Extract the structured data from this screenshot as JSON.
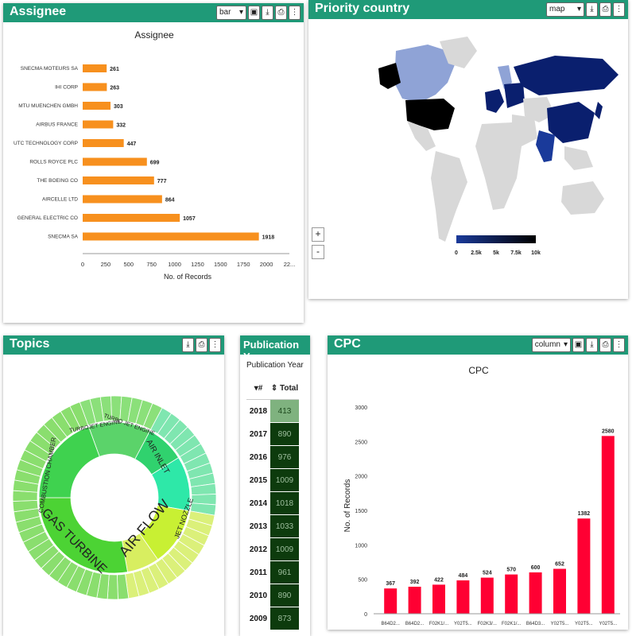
{
  "assignee": {
    "header_title": "Assignee",
    "select_value": "bar",
    "icons": [
      "save-icon",
      "download-icon",
      "print-icon",
      "more-icon"
    ],
    "chart_data": {
      "type": "bar",
      "orientation": "horizontal",
      "title": "Assignee",
      "xlabel": "No. of Records",
      "ylabel": "",
      "xlim": [
        0,
        2250
      ],
      "ticks": [
        "0",
        "250",
        "500",
        "750",
        "1000",
        "1250",
        "1500",
        "1750",
        "2000",
        "22..."
      ],
      "categories": [
        "SNECMA MOTEURS SA",
        "IHI CORP",
        "MTU MUENCHEN GMBH",
        "AIRBUS FRANCE",
        "UTC TECHNOLOGY CORP",
        "ROLLS ROYCE PLC",
        "THE BOEING CO",
        "AIRCELLE LTD",
        "GENERAL ELECTRIC CO",
        "SNECMA SA"
      ],
      "values": [
        261,
        263,
        303,
        332,
        447,
        699,
        777,
        864,
        1057,
        1918
      ],
      "color": "#f7901e"
    }
  },
  "priority": {
    "header_title": "Priority country",
    "select_value": "map",
    "icons": [
      "download-icon",
      "print-icon",
      "more-icon"
    ],
    "zoom_in": "+",
    "zoom_out": "-",
    "legend_ticks": [
      "0",
      "2.5k",
      "5k",
      "7.5k",
      "10k"
    ],
    "colors": {
      "land": "#d8d8d8",
      "high": "#000000",
      "mid": "#0a1f6e",
      "low": "#8fa3d6",
      "ocean": "#ffffff"
    }
  },
  "topics": {
    "header_title": "Topics",
    "icons": [
      "download-icon",
      "print-icon",
      "more-icon"
    ],
    "labels": [
      "TURBOJET ENGINE",
      "TURBO JET ENGINE",
      "AIR INLET",
      "COMBUSTION CHAMBER",
      "GAS TURBINE",
      "AIR FLOW",
      "JET NOZZLE"
    ]
  },
  "publication": {
    "header_title": "Publication Year",
    "subtitle": "Publication Year",
    "col_year": "# ",
    "col_total": "Total",
    "rows": [
      {
        "year": "2018",
        "total": "413"
      },
      {
        "year": "2017",
        "total": "890"
      },
      {
        "year": "2016",
        "total": "976"
      },
      {
        "year": "2015",
        "total": "1009"
      },
      {
        "year": "2014",
        "total": "1018"
      },
      {
        "year": "2013",
        "total": "1033"
      },
      {
        "year": "2012",
        "total": "1009"
      },
      {
        "year": "2011",
        "total": "961"
      },
      {
        "year": "2010",
        "total": "890"
      },
      {
        "year": "2009",
        "total": "873"
      }
    ],
    "first_row_color": "#7fb27f",
    "dark_color": "#0d3b0d"
  },
  "cpc": {
    "header_title": "CPC",
    "select_value": "column",
    "icons": [
      "save-icon",
      "download-icon",
      "print-icon",
      "more-icon"
    ],
    "chart_data": {
      "type": "bar",
      "title": "CPC",
      "xlabel": "",
      "ylabel": "No. of Records",
      "ylim": [
        0,
        3000
      ],
      "yticks": [
        "0",
        "500",
        "1000",
        "1500",
        "2000",
        "2500",
        "3000"
      ],
      "categories": [
        "B64D2...",
        "B64D2...",
        "F02K1/...",
        "Y02T5...",
        "F02K3/...",
        "F02K1/...",
        "B64D3...",
        "Y02T5...",
        "Y02T5...",
        "Y02T5..."
      ],
      "values": [
        367,
        392,
        422,
        484,
        524,
        570,
        600,
        652,
        1382,
        2580
      ],
      "color": "#ff0033"
    }
  }
}
